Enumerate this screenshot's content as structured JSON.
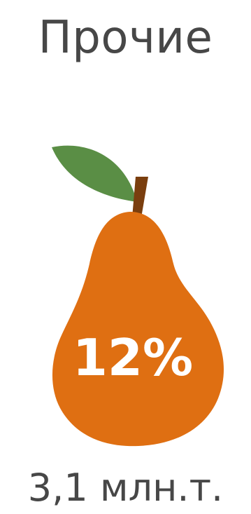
{
  "title": "Прочие",
  "graphic": {
    "icon": "pear-icon",
    "percent_label": "12%",
    "colors": {
      "body": "#DF6F12",
      "leaf": "#5A8E45",
      "stem": "#7A3E0E"
    }
  },
  "amount": "3,1 млн.т."
}
